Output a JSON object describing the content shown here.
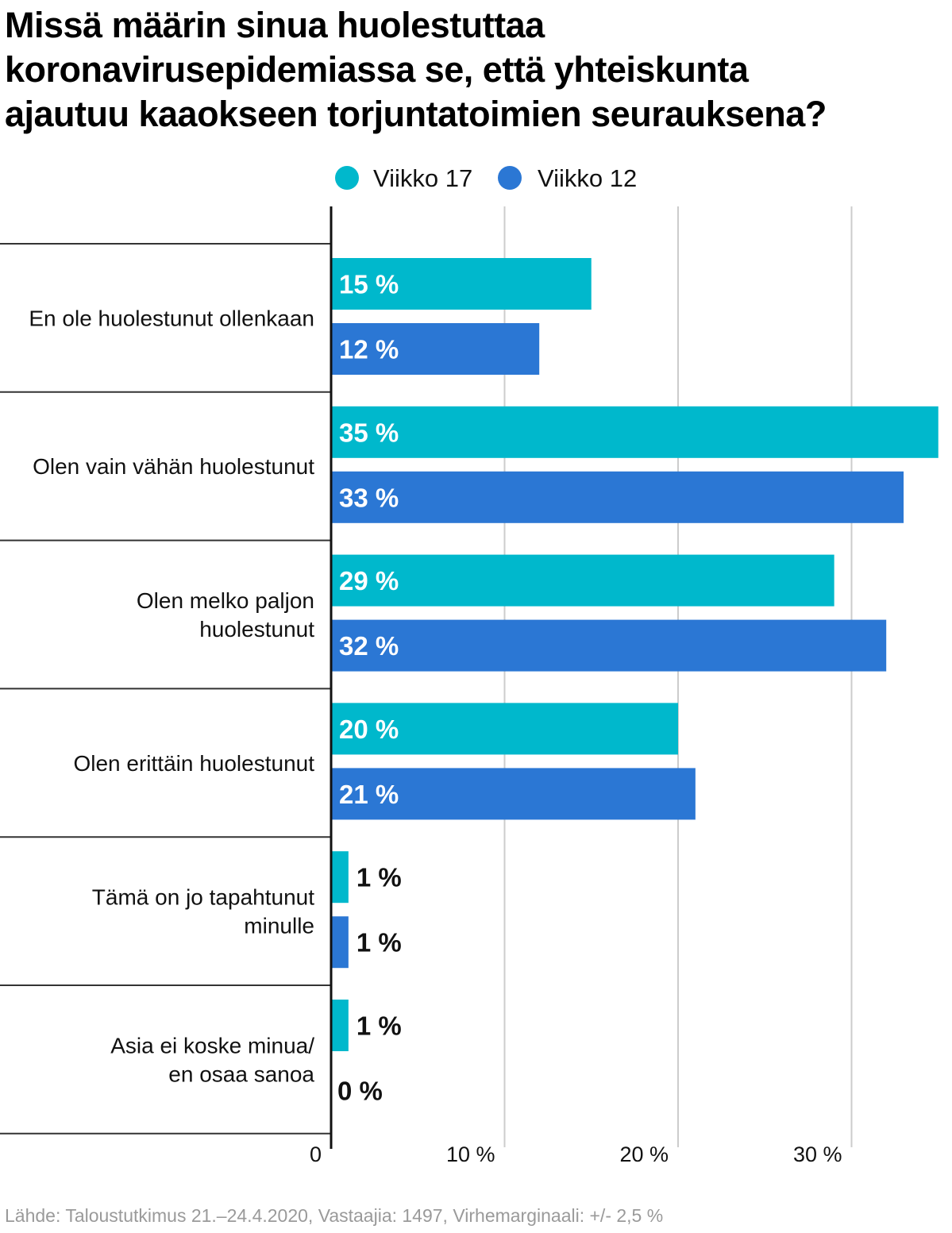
{
  "title_lines": [
    "Missä määrin sinua huolestuttaa",
    "koronavirusepidemiassa se, että yhteiskunta",
    "ajautuu kaaokseen torjuntatoimien seurauksena?"
  ],
  "footer": "Lähde: Taloustutkimus 21.–24.4.2020, Vastaajia: 1497, Virhemarginaali: +/- 2,5 %",
  "chart_data": {
    "type": "bar",
    "orientation": "horizontal",
    "title": "Missä määrin sinua huolestuttaa koronavirusepidemiassa se, että yhteiskunta ajautuu kaaokseen torjuntatoimien seurauksena?",
    "categories": [
      [
        "En ole huolestunut ollenkaan"
      ],
      [
        "Olen vain vähän huolestunut"
      ],
      [
        "Olen melko paljon",
        "huolestunut"
      ],
      [
        "Olen erittäin huolestunut"
      ],
      [
        "Tämä on jo tapahtunut",
        "minulle"
      ],
      [
        "Asia ei koske minua/",
        "en osaa sanoa"
      ]
    ],
    "series": [
      {
        "name": "Viikko 17",
        "color": "#00b8cc",
        "values": [
          15,
          35,
          29,
          20,
          1,
          1
        ]
      },
      {
        "name": "Viikko 12",
        "color": "#2b77d4",
        "values": [
          12,
          33,
          32,
          21,
          1,
          0
        ]
      }
    ],
    "value_suffix": " %",
    "xlim": [
      0,
      35
    ],
    "xticks": [
      {
        "value": 0,
        "label": "0"
      },
      {
        "value": 10,
        "label": "10 %"
      },
      {
        "value": 20,
        "label": "20 %"
      },
      {
        "value": 30,
        "label": "30 %"
      }
    ],
    "grid": true,
    "legend": "top-center"
  }
}
